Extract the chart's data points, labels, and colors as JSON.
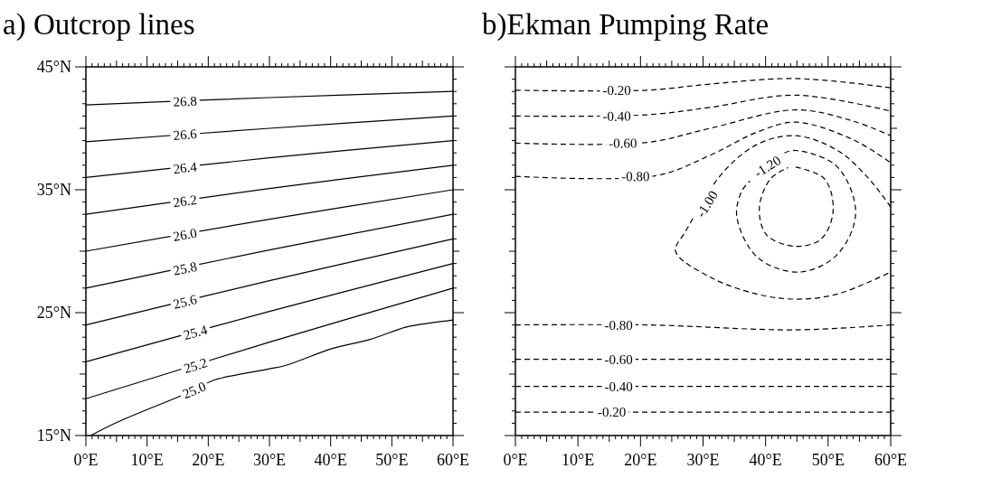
{
  "chart_data": [
    {
      "type": "line",
      "title": "a) Outcrop lines",
      "line_style": "solid",
      "xlim": [
        0,
        60
      ],
      "ylim": [
        15,
        45
      ],
      "xticks": [
        {
          "value": 0,
          "label": "0°E"
        },
        {
          "value": 1,
          "label": null
        },
        {
          "value": 2,
          "label": null
        },
        {
          "value": 3,
          "label": null
        },
        {
          "value": 4,
          "label": null
        },
        {
          "value": 5,
          "label": null
        },
        {
          "value": 6,
          "label": null
        },
        {
          "value": 7,
          "label": null
        },
        {
          "value": 8,
          "label": null
        },
        {
          "value": 9,
          "label": null
        },
        {
          "value": 10,
          "label": "10°E"
        },
        {
          "value": 11,
          "label": null
        },
        {
          "value": 12,
          "label": null
        },
        {
          "value": 13,
          "label": null
        },
        {
          "value": 14,
          "label": null
        },
        {
          "value": 15,
          "label": null
        },
        {
          "value": 16,
          "label": null
        },
        {
          "value": 17,
          "label": null
        },
        {
          "value": 18,
          "label": null
        },
        {
          "value": 19,
          "label": null
        },
        {
          "value": 20,
          "label": "20°E"
        },
        {
          "value": 21,
          "label": null
        },
        {
          "value": 22,
          "label": null
        },
        {
          "value": 23,
          "label": null
        },
        {
          "value": 24,
          "label": null
        },
        {
          "value": 25,
          "label": null
        },
        {
          "value": 26,
          "label": null
        },
        {
          "value": 27,
          "label": null
        },
        {
          "value": 28,
          "label": null
        },
        {
          "value": 29,
          "label": null
        },
        {
          "value": 30,
          "label": "30°E"
        },
        {
          "value": 31,
          "label": null
        },
        {
          "value": 32,
          "label": null
        },
        {
          "value": 33,
          "label": null
        },
        {
          "value": 34,
          "label": null
        },
        {
          "value": 35,
          "label": null
        },
        {
          "value": 36,
          "label": null
        },
        {
          "value": 37,
          "label": null
        },
        {
          "value": 38,
          "label": null
        },
        {
          "value": 39,
          "label": null
        },
        {
          "value": 40,
          "label": "40°E"
        },
        {
          "value": 41,
          "label": null
        },
        {
          "value": 42,
          "label": null
        },
        {
          "value": 43,
          "label": null
        },
        {
          "value": 44,
          "label": null
        },
        {
          "value": 45,
          "label": null
        },
        {
          "value": 46,
          "label": null
        },
        {
          "value": 47,
          "label": null
        },
        {
          "value": 48,
          "label": null
        },
        {
          "value": 49,
          "label": null
        },
        {
          "value": 50,
          "label": "50°E"
        },
        {
          "value": 51,
          "label": null
        },
        {
          "value": 52,
          "label": null
        },
        {
          "value": 53,
          "label": null
        },
        {
          "value": 54,
          "label": null
        },
        {
          "value": 55,
          "label": null
        },
        {
          "value": 56,
          "label": null
        },
        {
          "value": 57,
          "label": null
        },
        {
          "value": 58,
          "label": null
        },
        {
          "value": 59,
          "label": null
        },
        {
          "value": 60,
          "label": "60°E"
        }
      ],
      "yticks": [
        {
          "value": 15,
          "label": "15°N"
        },
        {
          "value": 16,
          "label": null
        },
        {
          "value": 17,
          "label": null
        },
        {
          "value": 18,
          "label": null
        },
        {
          "value": 19,
          "label": null
        },
        {
          "value": 20,
          "label": null
        },
        {
          "value": 21,
          "label": null
        },
        {
          "value": 22,
          "label": null
        },
        {
          "value": 23,
          "label": null
        },
        {
          "value": 24,
          "label": null
        },
        {
          "value": 25,
          "label": "25°N"
        },
        {
          "value": 26,
          "label": null
        },
        {
          "value": 27,
          "label": null
        },
        {
          "value": 28,
          "label": null
        },
        {
          "value": 29,
          "label": null
        },
        {
          "value": 30,
          "label": null
        },
        {
          "value": 31,
          "label": null
        },
        {
          "value": 32,
          "label": null
        },
        {
          "value": 33,
          "label": null
        },
        {
          "value": 34,
          "label": null
        },
        {
          "value": 35,
          "label": "35°N"
        },
        {
          "value": 36,
          "label": null
        },
        {
          "value": 37,
          "label": null
        },
        {
          "value": 38,
          "label": null
        },
        {
          "value": 39,
          "label": null
        },
        {
          "value": 40,
          "label": null
        },
        {
          "value": 41,
          "label": null
        },
        {
          "value": 42,
          "label": null
        },
        {
          "value": 43,
          "label": null
        },
        {
          "value": 44,
          "label": null
        },
        {
          "value": 45,
          "label": "45°N"
        }
      ],
      "series": [
        {
          "color": "#000000",
          "x": [
            0,
            30,
            60
          ],
          "values": [
            41.9,
            42.5,
            43.0
          ]
        },
        {
          "color": "#000000",
          "x": [
            0,
            30,
            60
          ],
          "values": [
            38.9,
            40.0,
            41.0
          ]
        },
        {
          "color": "#000000",
          "x": [
            0,
            30,
            60
          ],
          "values": [
            36.0,
            37.6,
            39.0
          ]
        },
        {
          "color": "#000000",
          "x": [
            0,
            30,
            60
          ],
          "values": [
            33.0,
            35.1,
            37.0
          ]
        },
        {
          "color": "#000000",
          "x": [
            0,
            30,
            60
          ],
          "values": [
            30.0,
            32.6,
            35.0
          ]
        },
        {
          "color": "#000000",
          "x": [
            0,
            30,
            60
          ],
          "values": [
            27.0,
            30.1,
            33.0
          ]
        },
        {
          "color": "#000000",
          "x": [
            0,
            30,
            60
          ],
          "values": [
            24.0,
            27.6,
            31.0
          ]
        },
        {
          "color": "#000000",
          "x": [
            0,
            30,
            60
          ],
          "values": [
            21.0,
            25.1,
            29.0
          ]
        },
        {
          "color": "#000000",
          "x": [
            0,
            30,
            60
          ],
          "values": [
            18.0,
            22.6,
            27.0
          ]
        },
        {
          "color": "#000000",
          "x": [
            0.8,
            5.2,
            17.7,
            20.9,
            29.7,
            32.6,
            40.4,
            46.3,
            52.1,
            54.1,
            60
          ],
          "values": [
            15.0,
            16.1,
            18.7,
            19.5,
            20.4,
            20.7,
            22.1,
            22.8,
            23.8,
            24.0,
            24.4
          ]
        }
      ],
      "annotations": [
        {
          "text": "26.8",
          "x": 16.2,
          "y": 42.2
        },
        {
          "text": "26.6",
          "x": 16.2,
          "y": 39.5
        },
        {
          "text": "26.4",
          "x": 16.2,
          "y": 36.8
        },
        {
          "text": "26.2",
          "x": 16.2,
          "y": 34.1
        },
        {
          "text": "26.0",
          "x": 16.2,
          "y": 31.35
        },
        {
          "text": "25.8",
          "x": 16.2,
          "y": 28.6
        },
        {
          "text": "25.6",
          "x": 16.2,
          "y": 25.9
        },
        {
          "text": "25.4",
          "x": 17.9,
          "y": 23.4
        },
        {
          "text": "25.2",
          "x": 17.9,
          "y": 20.7
        },
        {
          "text": "25.0",
          "x": 17.7,
          "y": 18.7
        }
      ]
    },
    {
      "type": "line",
      "title": "b)Ekman Pumping Rate",
      "line_style": "dashed",
      "tick_labels": "x",
      "xlim": [
        0,
        60
      ],
      "ylim": [
        15,
        45
      ],
      "yticks": [
        {
          "value": 15,
          "label": null
        },
        {
          "value": 16,
          "label": null
        },
        {
          "value": 17,
          "label": null
        },
        {
          "value": 18,
          "label": null
        },
        {
          "value": 19,
          "label": null
        },
        {
          "value": 20,
          "label": null
        },
        {
          "value": 21,
          "label": null
        },
        {
          "value": 22,
          "label": null
        },
        {
          "value": 23,
          "label": null
        },
        {
          "value": 24,
          "label": null
        },
        {
          "value": 25,
          "label": null
        },
        {
          "value": 26,
          "label": null
        },
        {
          "value": 27,
          "label": null
        },
        {
          "value": 28,
          "label": null
        },
        {
          "value": 29,
          "label": null
        },
        {
          "value": 30,
          "label": null
        },
        {
          "value": 31,
          "label": null
        },
        {
          "value": 32,
          "label": null
        },
        {
          "value": 33,
          "label": null
        },
        {
          "value": 34,
          "label": null
        },
        {
          "value": 35,
          "label": null
        },
        {
          "value": 36,
          "label": null
        },
        {
          "value": 37,
          "label": null
        },
        {
          "value": 38,
          "label": null
        },
        {
          "value": 39,
          "label": null
        },
        {
          "value": 40,
          "label": null
        },
        {
          "value": 41,
          "label": null
        },
        {
          "value": 42,
          "label": null
        },
        {
          "value": 43,
          "label": null
        },
        {
          "value": 44,
          "label": null
        },
        {
          "value": 45,
          "label": null
        }
      ],
      "xticks": [
        {
          "value": 0,
          "label": "0°E"
        },
        {
          "value": 1,
          "label": null
        },
        {
          "value": 2,
          "label": null
        },
        {
          "value": 3,
          "label": null
        },
        {
          "value": 4,
          "label": null
        },
        {
          "value": 5,
          "label": null
        },
        {
          "value": 6,
          "label": null
        },
        {
          "value": 7,
          "label": null
        },
        {
          "value": 8,
          "label": null
        },
        {
          "value": 9,
          "label": null
        },
        {
          "value": 10,
          "label": "10°E"
        },
        {
          "value": 11,
          "label": null
        },
        {
          "value": 12,
          "label": null
        },
        {
          "value": 13,
          "label": null
        },
        {
          "value": 14,
          "label": null
        },
        {
          "value": 15,
          "label": null
        },
        {
          "value": 16,
          "label": null
        },
        {
          "value": 17,
          "label": null
        },
        {
          "value": 18,
          "label": null
        },
        {
          "value": 19,
          "label": null
        },
        {
          "value": 20,
          "label": "20°E"
        },
        {
          "value": 21,
          "label": null
        },
        {
          "value": 22,
          "label": null
        },
        {
          "value": 23,
          "label": null
        },
        {
          "value": 24,
          "label": null
        },
        {
          "value": 25,
          "label": null
        },
        {
          "value": 26,
          "label": null
        },
        {
          "value": 27,
          "label": null
        },
        {
          "value": 28,
          "label": null
        },
        {
          "value": 29,
          "label": null
        },
        {
          "value": 30,
          "label": "30°E"
        },
        {
          "value": 31,
          "label": null
        },
        {
          "value": 32,
          "label": null
        },
        {
          "value": 33,
          "label": null
        },
        {
          "value": 34,
          "label": null
        },
        {
          "value": 35,
          "label": null
        },
        {
          "value": 36,
          "label": null
        },
        {
          "value": 37,
          "label": null
        },
        {
          "value": 38,
          "label": null
        },
        {
          "value": 39,
          "label": null
        },
        {
          "value": 40,
          "label": "40°E"
        },
        {
          "value": 41,
          "label": null
        },
        {
          "value": 42,
          "label": null
        },
        {
          "value": 43,
          "label": null
        },
        {
          "value": 44,
          "label": null
        },
        {
          "value": 45,
          "label": null
        },
        {
          "value": 46,
          "label": null
        },
        {
          "value": 47,
          "label": null
        },
        {
          "value": 48,
          "label": null
        },
        {
          "value": 49,
          "label": null
        },
        {
          "value": 50,
          "label": "50°E"
        },
        {
          "value": 51,
          "label": null
        },
        {
          "value": 52,
          "label": null
        },
        {
          "value": 53,
          "label": null
        },
        {
          "value": 54,
          "label": null
        },
        {
          "value": 55,
          "label": null
        },
        {
          "value": 56,
          "label": null
        },
        {
          "value": 57,
          "label": null
        },
        {
          "value": 58,
          "label": null
        },
        {
          "value": 59,
          "label": null
        },
        {
          "value": 60,
          "label": "60°E"
        }
      ],
      "series": [
        {
          "color": "#000000",
          "x": [
            0,
            21,
            31.1,
            44.8,
            60
          ],
          "values": [
            43.1,
            43.1,
            43.6,
            44.05,
            43.3
          ]
        },
        {
          "color": "#000000",
          "x": [
            0,
            21,
            31.1,
            44.8,
            60
          ],
          "values": [
            41.0,
            41.1,
            41.7,
            42.7,
            41.4
          ]
        },
        {
          "color": "#000000",
          "x": [
            0,
            21,
            31.1,
            44.8,
            53.9,
            60
          ],
          "values": [
            38.8,
            38.85,
            40.0,
            41.5,
            40.6,
            39.4
          ]
        },
        {
          "color": "#000000",
          "x": [
            0,
            22.5,
            31.1,
            38.7,
            44.8,
            53.9,
            60
          ],
          "values": [
            36.1,
            36.15,
            37.8,
            39.7,
            40.5,
            39.1,
            37.2
          ]
        },
        {
          "color": "#000000",
          "x": [
            60,
            56.5,
            51.5,
            44.8,
            38.7,
            33.0,
            27.2,
            25.6,
            31.1,
            38.7,
            44.8,
            51.4,
            60
          ],
          "values": [
            33.6,
            35.9,
            38.2,
            39.4,
            38.7,
            36.3,
            31.6,
            30.0,
            27.9,
            26.5,
            26.1,
            26.5,
            28.3
          ]
        },
        {
          "color": "#000000",
          "x": [
            43.0,
            44.8,
            51.4,
            54.4,
            51.4,
            45.4,
            38.7,
            35.4,
            36.2,
            37.5
          ],
          "values": [
            38.0,
            38.2,
            36.9,
            33.1,
            29.7,
            28.3,
            29.5,
            32.8,
            34.9,
            35.7
          ]
        },
        {
          "color": "#000000",
          "x": [
            44.8,
            49.4,
            50.8,
            48.9,
            44.8,
            40.2,
            39.0,
            40.8,
            43.6
          ],
          "values": [
            36.85,
            35.9,
            33.3,
            31.0,
            30.4,
            31.3,
            33.5,
            35.9,
            36.8
          ]
        },
        {
          "color": "#000000",
          "x": [
            0,
            21,
            44.8,
            60
          ],
          "values": [
            24.0,
            24.0,
            23.6,
            24.0
          ]
        },
        {
          "color": "#000000",
          "x": [
            0,
            60
          ],
          "values": [
            21.2,
            21.2
          ]
        },
        {
          "color": "#000000",
          "x": [
            0,
            60
          ],
          "values": [
            19.0,
            19.0
          ]
        },
        {
          "color": "#000000",
          "x": [
            0,
            60
          ],
          "values": [
            16.9,
            16.9
          ]
        }
      ],
      "annotations": [
        {
          "text": "-0.20",
          "x": 16.2,
          "y": 43.1
        },
        {
          "text": "-0.40",
          "x": 16.2,
          "y": 41.0
        },
        {
          "text": "-0.60",
          "x": 17.2,
          "y": 38.8
        },
        {
          "text": "-0.80",
          "x": 19.2,
          "y": 36.1
        },
        {
          "text": "-1.00",
          "x": 30.6,
          "y": 33.85
        },
        {
          "text": "-1.20",
          "x": 40.3,
          "y": 36.9
        },
        {
          "text": "-0.80",
          "x": 16.5,
          "y": 24.0
        },
        {
          "text": "-0.60",
          "x": 16.5,
          "y": 21.2
        },
        {
          "text": "-0.40",
          "x": 16.5,
          "y": 19.0
        },
        {
          "text": "-0.20",
          "x": 15.4,
          "y": 16.9
        }
      ]
    }
  ]
}
